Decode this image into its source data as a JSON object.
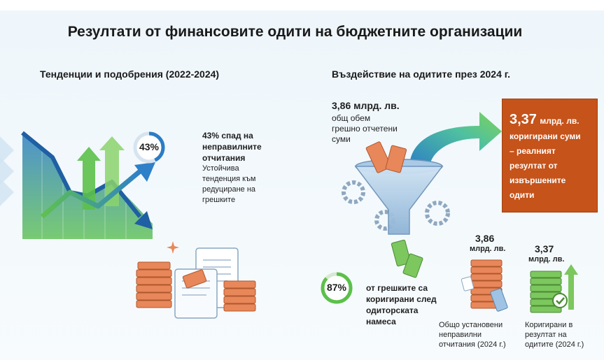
{
  "title": "Резултати от финансовите одити на бюджетните организации",
  "left": {
    "subtitle": "Тенденции и подобрения (2022-2024)",
    "ring_percent_label": "43%",
    "ring_fraction": 0.43,
    "headline_1": "43% спад на",
    "headline_2": "неправилните",
    "headline_3": "отчитания",
    "desc_1": "Устойчива",
    "desc_2": "тенденция към",
    "desc_3": "редуциране на",
    "desc_4": "грешките"
  },
  "right": {
    "subtitle": "Въздействие на одитите през 2024 г.",
    "total_amount": "3,86 млрд. лв.",
    "total_desc_1": "общ обем",
    "total_desc_2": "грешно отчетени",
    "total_desc_3": "суми",
    "box_amount": "3,37",
    "box_unit": "млрд. лв.",
    "box_line_1": "коригирани суми",
    "box_line_2": "– реалният",
    "box_line_3": "резултат от",
    "box_line_4": "извършените",
    "box_line_5": "одити",
    "ring_percent_label": "87%",
    "ring_fraction": 0.87,
    "ring_desc_1": "от грешките са",
    "ring_desc_2": "коригирани след",
    "ring_desc_3": "одиторската",
    "ring_desc_4": "намеса",
    "stack1_value": "3,86",
    "stack1_unit": "млрд. лв.",
    "stack1_cap_1": "Общо установени",
    "stack1_cap_2": "неправилни",
    "stack1_cap_3": "отчитания (2024 г.)",
    "stack2_value": "3,37",
    "stack2_unit": "млрд. лв.",
    "stack2_cap_1": "Коригирани в",
    "stack2_cap_2": "резултат на",
    "stack2_cap_3": "одитите (2024 г.)"
  },
  "colors": {
    "accent_blue": "#2b7cc4",
    "accent_green": "#5cc04a",
    "orange": "#c5531a",
    "money_orange": "#e8875a",
    "money_green": "#7cc75e"
  }
}
